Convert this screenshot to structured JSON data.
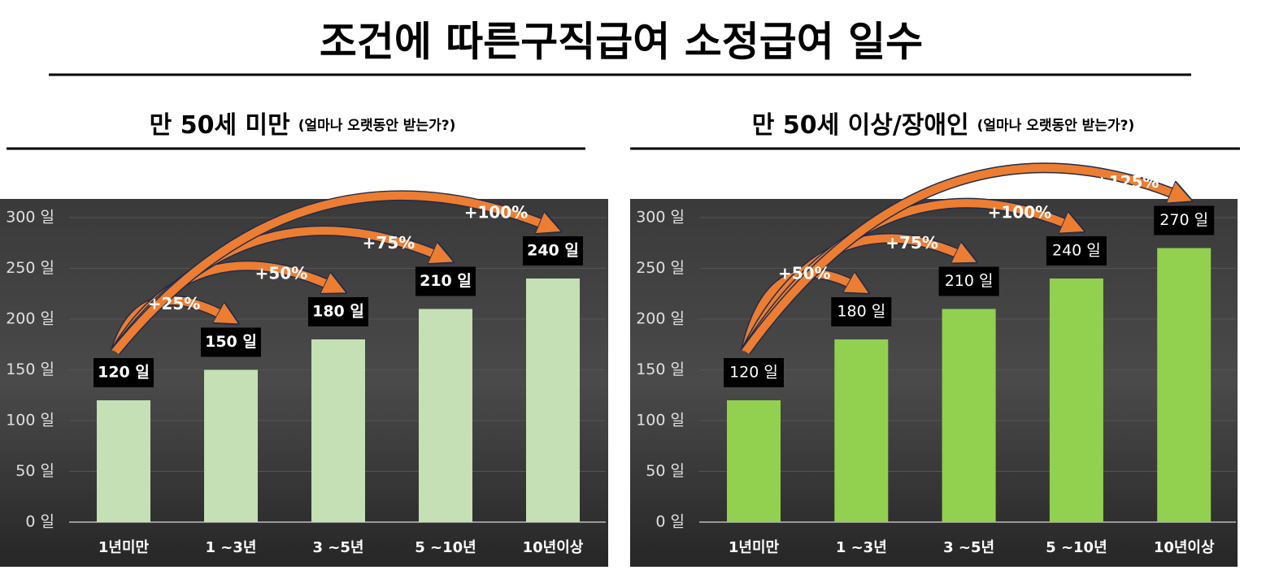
{
  "title": "조건에 따른구직급여 소정급여 일수",
  "chart_data": [
    {
      "type": "bar",
      "title": "만 50세 미만",
      "subtitle": "(얼마나 오랫동안 받는가?)",
      "categories": [
        "1년미만",
        "1 ~3년",
        "3 ~5년",
        "5 ~10년",
        "10년이상"
      ],
      "values": [
        120,
        150,
        180,
        210,
        240
      ],
      "value_labels": [
        "120 일",
        "150 일",
        "180 일",
        "210 일",
        "240 일"
      ],
      "growth_labels": [
        null,
        "+25%",
        "+50%",
        "+75%",
        "+100%"
      ],
      "color": "#c5e0b4",
      "ylim": [
        0,
        300
      ],
      "yticks": [
        {
          "value": 0,
          "label": "0 일"
        },
        {
          "value": 50,
          "label": "50 일"
        },
        {
          "value": 100,
          "label": "100 일"
        },
        {
          "value": 150,
          "label": "150 일"
        },
        {
          "value": 200,
          "label": "200 일"
        },
        {
          "value": 250,
          "label": "250 일"
        },
        {
          "value": 300,
          "label": "300 일"
        }
      ]
    },
    {
      "type": "bar",
      "title": "만 50세 이상/장애인",
      "subtitle": "(얼마나 오랫동안 받는가?)",
      "categories": [
        "1년미만",
        "1 ~3년",
        "3 ~5년",
        "5 ~10년",
        "10년이상"
      ],
      "values": [
        120,
        180,
        210,
        240,
        270
      ],
      "value_labels": [
        "120 일",
        "180 일",
        "210 일",
        "240 일",
        "270 일"
      ],
      "growth_labels": [
        null,
        "+50%",
        "+75%",
        "+100%",
        "+125%"
      ],
      "color": "#92d050",
      "ylim": [
        0,
        300
      ],
      "yticks": [
        {
          "value": 0,
          "label": "0 일"
        },
        {
          "value": 50,
          "label": "50 일"
        },
        {
          "value": 100,
          "label": "100 일"
        },
        {
          "value": 150,
          "label": "150 일"
        },
        {
          "value": 200,
          "label": "200 일"
        },
        {
          "value": 250,
          "label": "250 일"
        },
        {
          "value": 300,
          "label": "300 일"
        }
      ]
    }
  ]
}
